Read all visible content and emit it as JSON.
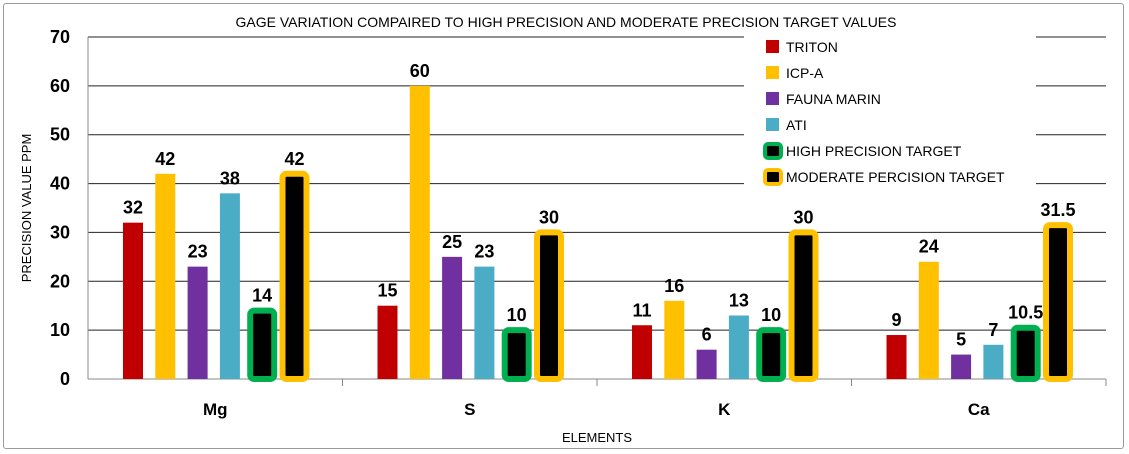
{
  "chart_data": {
    "type": "bar",
    "title": "GAGE  VARIATION COMPAIRED TO HIGH PRECISION AND MODERATE PRECISION TARGET VALUES",
    "xlabel": "ELEMENTS",
    "ylabel": "PRECISION VALUE PPM",
    "ylim": [
      0,
      70
    ],
    "yticks": [
      "0",
      "10",
      "20",
      "30",
      "40",
      "50",
      "60",
      "70"
    ],
    "grid": true,
    "legend_position": "top-right",
    "categories": [
      "Mg",
      "S",
      "K",
      "Ca"
    ],
    "series": [
      {
        "name": "TRITON",
        "color": "#c00000",
        "style": "solid",
        "values": [
          32,
          15,
          11,
          9
        ],
        "labels": [
          "32",
          "15",
          "11",
          "9"
        ]
      },
      {
        "name": "ICP-A",
        "color": "#ffc000",
        "style": "solid",
        "values": [
          42,
          60,
          16,
          24
        ],
        "labels": [
          "42",
          "60",
          "16",
          "24"
        ]
      },
      {
        "name": "FAUNA MARIN",
        "color": "#7030a0",
        "style": "solid",
        "values": [
          23,
          25,
          6,
          5
        ],
        "labels": [
          "23",
          "25",
          "6",
          "5"
        ]
      },
      {
        "name": "ATI",
        "color": "#4bacc6",
        "style": "solid",
        "values": [
          38,
          23,
          13,
          7
        ],
        "labels": [
          "38",
          "23",
          "13",
          "7"
        ]
      },
      {
        "name": "HIGH PRECISION TARGET",
        "color": "#00b050",
        "style": "outlined",
        "values": [
          14,
          10,
          10,
          10.5
        ],
        "labels": [
          "14",
          "10",
          "10",
          "10.5"
        ]
      },
      {
        "name": "MODERATE PERCISION TARGET",
        "color": "#ffc000",
        "style": "outlined",
        "values": [
          42,
          30,
          30,
          31.5
        ],
        "labels": [
          "42",
          "30",
          "30",
          "31.5"
        ]
      }
    ]
  }
}
